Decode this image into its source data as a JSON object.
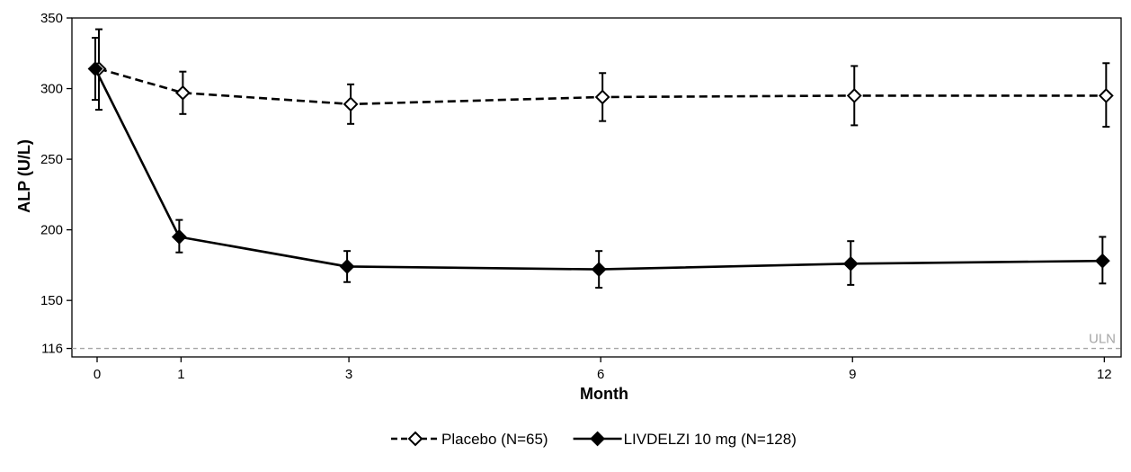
{
  "chart_data": {
    "type": "line",
    "xlabel": "Month",
    "ylabel": "ALP (U/L)",
    "x_ticks": [
      0,
      1,
      3,
      6,
      9,
      12
    ],
    "y_ticks": [
      116,
      150,
      200,
      250,
      300,
      350
    ],
    "xlim": [
      -0.3,
      12.2
    ],
    "ylim": [
      110,
      350
    ],
    "grid": false,
    "legend_position": "bottom-center",
    "reference_line": {
      "label": "ULN",
      "y": 116,
      "color": "#a6a6a6",
      "style": "dashed"
    },
    "series": [
      {
        "name": "Placebo (N=65)",
        "line_style": "dashed",
        "marker": "open-diamond",
        "color": "#000000",
        "x": [
          0,
          1,
          3,
          6,
          9,
          12
        ],
        "y": [
          314,
          297,
          289,
          294,
          295,
          295
        ],
        "err_low": [
          285,
          282,
          275,
          277,
          274,
          273
        ],
        "err_high": [
          342,
          312,
          303,
          311,
          316,
          318
        ]
      },
      {
        "name": "LIVDELZI 10 mg (N=128)",
        "line_style": "solid",
        "marker": "filled-diamond",
        "color": "#000000",
        "x": [
          0,
          1,
          3,
          6,
          9,
          12
        ],
        "y": [
          314,
          195,
          174,
          172,
          176,
          178
        ],
        "err_low": [
          292,
          184,
          163,
          159,
          161,
          162
        ],
        "err_high": [
          336,
          207,
          185,
          185,
          192,
          195
        ]
      }
    ]
  }
}
